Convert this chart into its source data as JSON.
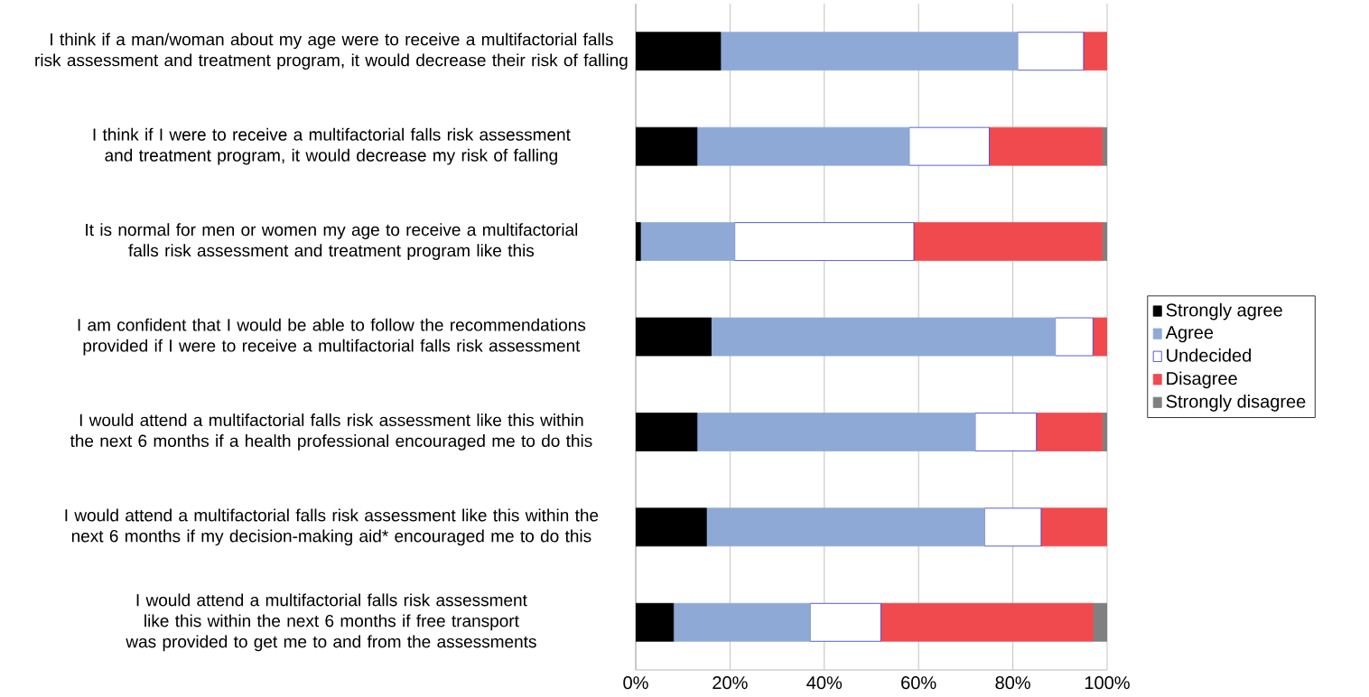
{
  "chart_data": {
    "type": "bar",
    "orientation": "horizontal",
    "stacked": true,
    "categories": [
      "I think if a man/woman about my age were to receive a multifactorial falls risk assessment and treatment program, it would decrease their risk of falling",
      "I think if I were to receive a multifactorial falls risk assessment and treatment program, it would decrease my risk of falling",
      "It is normal for men or  women my age to receive a multifactorial falls risk assessment and treatment program like this",
      "I am confident that I would be able to follow the recommendations provided if I were to receive a multifactorial falls risk assessment",
      "I would attend a multifactorial falls risk assessment like this within the next 6 months if a health professional encouraged me to do this",
      "I would attend a multifactorial falls risk assessment like this within the next 6 months if my decision-making aid* encouraged me to do this",
      "I would attend a multifactorial falls risk assessment like this within the next 6 months if free transport was provided to get me to and from the assessments"
    ],
    "series": [
      {
        "name": "Strongly agree",
        "color": "#000000",
        "values": [
          18,
          13,
          1,
          16,
          13,
          15,
          8
        ]
      },
      {
        "name": "Agree",
        "color": "#8fa9d6",
        "values": [
          63,
          45,
          20,
          73,
          59,
          59,
          29
        ]
      },
      {
        "name": "Undecided",
        "color": "#ffffff",
        "values": [
          14,
          17,
          38,
          8,
          13,
          12,
          15
        ]
      },
      {
        "name": "Disagree",
        "color": "#f04a4f",
        "values": [
          5,
          24,
          40,
          3,
          14,
          14,
          45
        ]
      },
      {
        "name": "Strongly disagree",
        "color": "#808080",
        "values": [
          0,
          1,
          1,
          0,
          1,
          0,
          3
        ]
      }
    ],
    "xlim": [
      0,
      100
    ],
    "xticks": [
      {
        "value": 0,
        "label": "0%"
      },
      {
        "value": 20,
        "label": "20%"
      },
      {
        "value": 40,
        "label": "40%"
      },
      {
        "value": 60,
        "label": "60%"
      },
      {
        "value": 80,
        "label": "80%"
      },
      {
        "value": 100,
        "label": "100%"
      }
    ],
    "grid": "x",
    "legend": "right"
  }
}
